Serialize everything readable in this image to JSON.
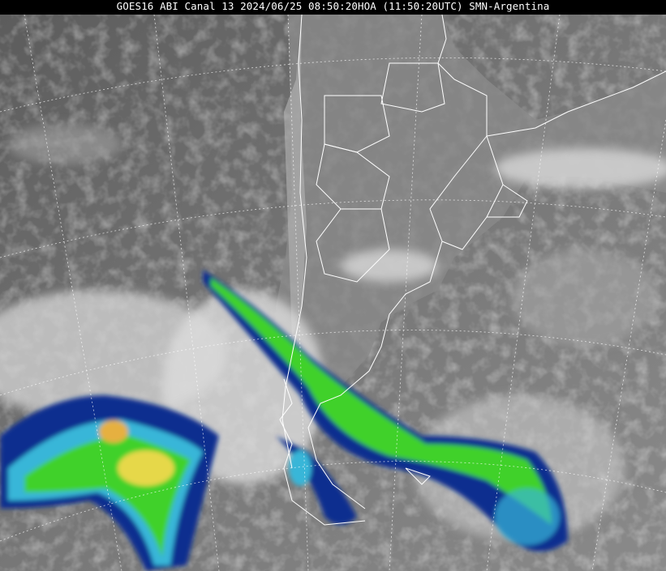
{
  "header": {
    "title": "GOES16 ABI Canal 13 2024/06/25 08:50:20HOA (11:50:20UTC) SMN-Argentina"
  },
  "imagery": {
    "satellite": "GOES16",
    "channel": "13",
    "palette": {
      "background": "#6e6e6e",
      "cloud": "#d8d8d8",
      "cold_cloud_green": "#3fd12a",
      "cold_cloud_yellow": "#e6d84a",
      "cold_cloud_blue": "#0a2f8f",
      "cold_cloud_cyan": "#39b6d8",
      "grid": "#ffffff",
      "borders": "#ffffff"
    }
  }
}
